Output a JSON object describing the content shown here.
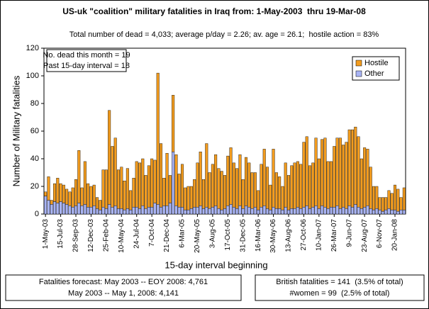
{
  "chart_data": {
    "type": "stacked_bar",
    "title": "US-uk \"coalition\" military fatalities in Iraq from: 1-May-2003  thru 19-Mar-08",
    "subtitle": "Total number of dead = 4,033; average p/day = 2.26; av. age = 26.1;  hostile action = 83%",
    "y_label": "Number of Military fatalities",
    "x_label": "15-day interval beginning",
    "annotations": [
      "No. dead this month = 19",
      "Past 15-day interval = 18"
    ],
    "footer_left": [
      "Fatalities forecast: May 2003 -- EOY 2008: 4,761",
      "May 2003 -- May 1, 2008: 4,141"
    ],
    "footer_right": [
      "British fatalities = 141  (3.5% of total)",
      "#women = 99  (2.5% of total)"
    ],
    "legend_position": "upper right",
    "ylim": [
      0,
      120
    ],
    "yticks": [
      0,
      20,
      40,
      60,
      80,
      100,
      120
    ],
    "categories": [
      "1-May-03",
      null,
      null,
      null,
      null,
      "15-Jul-03",
      null,
      null,
      null,
      null,
      "28-Sep-03",
      null,
      null,
      null,
      null,
      "12-Dec-03",
      null,
      null,
      null,
      null,
      "25-Feb-04",
      null,
      null,
      null,
      null,
      "10-May-04",
      null,
      null,
      null,
      null,
      "24-Jul-04",
      null,
      null,
      null,
      null,
      "7-Oct-04",
      null,
      null,
      null,
      null,
      "21-Dec-04",
      null,
      null,
      null,
      null,
      "6-Mar-05",
      null,
      null,
      null,
      null,
      "20-May-05",
      null,
      null,
      null,
      null,
      "3-Aug-05",
      null,
      null,
      null,
      null,
      "17-Oct-05",
      null,
      null,
      null,
      null,
      "31-Dec-05",
      null,
      null,
      null,
      null,
      "16-Mar-06",
      null,
      null,
      null,
      null,
      "30-May-06",
      null,
      null,
      null,
      null,
      "13-Aug-06",
      null,
      null,
      null,
      null,
      "27-Oct-06",
      null,
      null,
      null,
      null,
      "10-Jan-07",
      null,
      null,
      null,
      null,
      "26-Mar-07",
      null,
      null,
      null,
      null,
      "9-Jun-07",
      null,
      null,
      null,
      null,
      "23-Aug-07",
      null,
      null,
      null,
      null,
      "6-Nov-07",
      null,
      null,
      null,
      null,
      "20-Jan-08",
      null,
      null,
      null
    ],
    "series": [
      {
        "name": "Hostile",
        "color": "#f39c1e",
        "values": [
          3,
          17,
          3,
          13,
          18,
          13,
          13,
          11,
          10,
          14,
          19,
          38,
          13,
          31,
          17,
          15,
          15,
          8,
          7,
          27,
          28,
          68,
          44,
          49,
          28,
          30,
          21,
          29,
          14,
          21,
          33,
          33,
          34,
          24,
          30,
          35,
          31,
          95,
          46,
          20,
          38,
          20,
          41,
          37,
          24,
          31,
          16,
          17,
          16,
          20,
          32,
          39,
          21,
          46,
          26,
          31,
          37,
          29,
          28,
          24,
          36,
          41,
          32,
          29,
          37,
          21,
          35,
          32,
          26,
          25,
          14,
          31,
          41,
          30,
          18,
          42,
          26,
          23,
          17,
          32,
          25,
          31,
          33,
          33,
          32,
          47,
          50,
          31,
          32,
          49,
          36,
          48,
          50,
          34,
          33,
          44,
          49,
          51,
          45,
          48,
          55,
          56,
          56,
          51,
          36,
          43,
          41,
          30,
          17,
          16,
          9,
          10,
          9,
          13,
          12,
          18,
          16,
          9,
          16
        ]
      },
      {
        "name": "Other",
        "color": "#a9b4f5",
        "values": [
          13,
          10,
          7,
          9,
          8,
          9,
          8,
          7,
          6,
          5,
          6,
          8,
          6,
          7,
          5,
          5,
          6,
          4,
          3,
          5,
          4,
          7,
          5,
          6,
          4,
          4,
          3,
          4,
          3,
          5,
          5,
          4,
          6,
          4,
          5,
          5,
          8,
          7,
          5,
          6,
          6,
          8,
          45,
          6,
          5,
          5,
          3,
          3,
          4,
          5,
          5,
          6,
          4,
          5,
          4,
          5,
          6,
          4,
          3,
          4,
          6,
          7,
          5,
          4,
          6,
          4,
          6,
          5,
          4,
          5,
          3,
          5,
          6,
          4,
          3,
          5,
          4,
          4,
          3,
          5,
          3,
          4,
          4,
          5,
          4,
          5,
          6,
          4,
          5,
          6,
          4,
          6,
          5,
          4,
          5,
          5,
          6,
          4,
          5,
          4,
          6,
          5,
          7,
          5,
          4,
          5,
          6,
          4,
          3,
          4,
          3,
          2,
          3,
          4,
          3,
          3,
          2,
          3,
          3
        ]
      }
    ]
  }
}
